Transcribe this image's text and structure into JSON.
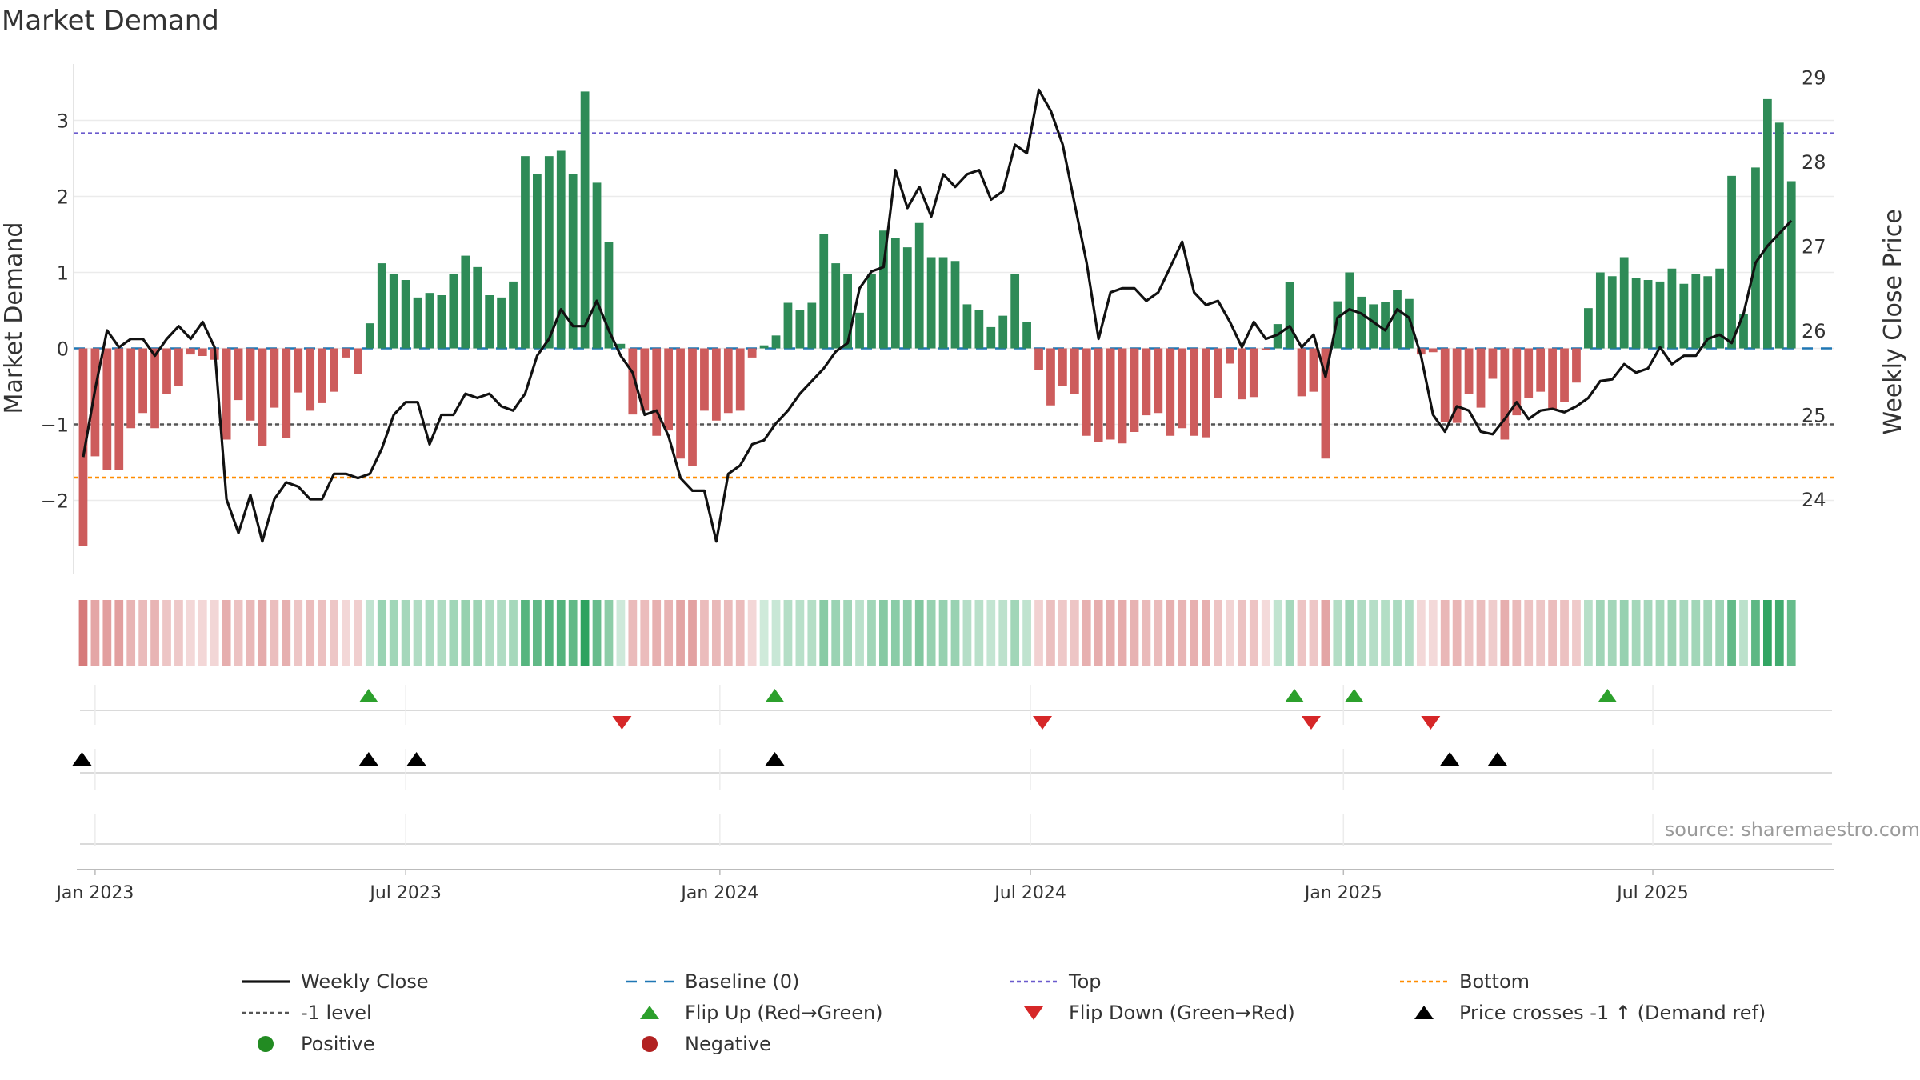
{
  "title": "Market Demand",
  "source": "source: sharemaestro.com",
  "colors": {
    "positive": "#2e8b57",
    "negative": "#cd5c5c",
    "close": "#111111",
    "baseline": "#1f77b4",
    "top": "#6a5acd",
    "bottom": "#ff8c00",
    "minus1": "#555555",
    "flip_up": "#2ca02c",
    "flip_down": "#d62728",
    "cross": "#000000",
    "positive_dot": "#228b22",
    "negative_dot": "#b22222"
  },
  "legend": [
    {
      "key": "close",
      "label": "Weekly Close",
      "symbol": "line-solid"
    },
    {
      "key": "baseline",
      "label": "Baseline (0)",
      "symbol": "line-dash"
    },
    {
      "key": "top",
      "label": "Top",
      "symbol": "line-dot"
    },
    {
      "key": "bottom",
      "label": "Bottom",
      "symbol": "line-dot"
    },
    {
      "key": "minus1",
      "label": "-1 level",
      "symbol": "line-dot"
    },
    {
      "key": "flip_up",
      "label": "Flip Up (Red→Green)",
      "symbol": "tri-up"
    },
    {
      "key": "flip_down",
      "label": "Flip Down (Green→Red)",
      "symbol": "tri-down"
    },
    {
      "key": "cross",
      "label": "Price crosses -1 ↑ (Demand ref)",
      "symbol": "tri-up"
    },
    {
      "key": "positive_dot",
      "label": "Positive",
      "symbol": "dot"
    },
    {
      "key": "negative_dot",
      "label": "Negative",
      "symbol": "dot"
    }
  ],
  "chart_data": {
    "type": "bar+line",
    "title": "Market Demand",
    "ylabel_left": "Market Demand",
    "ylabel_right": "Weekly Close Price",
    "ylim_left": [
      -2.85,
      3.75
    ],
    "ylim_right": [
      23.1,
      29.3
    ],
    "yticks_left": [
      -2,
      -1,
      0,
      1,
      2,
      3
    ],
    "yticks_right": [
      24,
      25,
      26,
      27,
      28,
      29
    ],
    "x_start_week": 0,
    "x_end_week": 147,
    "x_ticks": [
      {
        "label": "Jan 2023",
        "week": 1.5
      },
      {
        "label": "Jul 2023",
        "week": 27.5
      },
      {
        "label": "Jan 2024",
        "week": 53.8
      },
      {
        "label": "Jul 2024",
        "week": 79.8
      },
      {
        "label": "Jan 2025",
        "week": 106
      },
      {
        "label": "Jul 2025",
        "week": 131.9
      }
    ],
    "reference_lines": {
      "baseline": 0,
      "top": 2.83,
      "bottom": -1.7,
      "minus1": -1
    },
    "demand": [
      -2.6,
      -1.42,
      -1.6,
      -1.6,
      -1.05,
      -0.85,
      -1.05,
      -0.6,
      -0.5,
      -0.08,
      -0.1,
      -0.15,
      -1.2,
      -0.68,
      -0.95,
      -1.28,
      -0.78,
      -1.18,
      -0.58,
      -0.82,
      -0.72,
      -0.57,
      -0.12,
      -0.34,
      0.33,
      1.12,
      0.98,
      0.9,
      0.67,
      0.73,
      0.7,
      0.98,
      1.22,
      1.07,
      0.7,
      0.67,
      0.88,
      2.53,
      2.3,
      2.53,
      2.6,
      2.3,
      3.38,
      2.18,
      1.4,
      0.06,
      -0.87,
      -0.82,
      -1.15,
      -1.08,
      -1.45,
      -1.55,
      -0.82,
      -0.95,
      -0.85,
      -0.82,
      -0.12,
      0.04,
      0.17,
      0.6,
      0.5,
      0.6,
      1.5,
      1.12,
      0.98,
      0.47,
      0.98,
      1.55,
      1.45,
      1.33,
      1.65,
      1.2,
      1.2,
      1.15,
      0.58,
      0.5,
      0.28,
      0.43,
      0.98,
      0.35,
      -0.28,
      -0.75,
      -0.5,
      -0.6,
      -1.15,
      -1.23,
      -1.2,
      -1.25,
      -1.1,
      -0.88,
      -0.85,
      -1.15,
      -1.05,
      -1.15,
      -1.17,
      -0.65,
      -0.2,
      -0.67,
      -0.64,
      -0.02,
      0.32,
      0.87,
      -0.63,
      -0.57,
      -1.45,
      0.62,
      1.0,
      0.68,
      0.58,
      0.61,
      0.77,
      0.65,
      -0.08,
      -0.05,
      -0.97,
      -0.98,
      -0.6,
      -0.78,
      -0.4,
      -1.2,
      -0.88,
      -0.65,
      -0.57,
      -0.8,
      -0.7,
      -0.45,
      0.53,
      1.0,
      0.95,
      1.2,
      0.93,
      0.9,
      0.88,
      1.05,
      0.85,
      0.98,
      0.95,
      1.05,
      2.27,
      0.45,
      2.38,
      3.28,
      2.97,
      2.2
    ],
    "close": [
      24.5,
      25.3,
      26.0,
      25.8,
      25.9,
      25.9,
      25.7,
      25.9,
      26.05,
      25.9,
      26.1,
      25.8,
      24.0,
      23.6,
      24.05,
      23.5,
      24.0,
      24.2,
      24.15,
      24.0,
      24.0,
      24.3,
      24.3,
      24.25,
      24.3,
      24.6,
      25.0,
      25.15,
      25.15,
      24.65,
      25.0,
      25.0,
      25.25,
      25.2,
      25.25,
      25.1,
      25.05,
      25.25,
      25.7,
      25.9,
      26.25,
      26.05,
      26.05,
      26.35,
      26.0,
      25.7,
      25.5,
      25.0,
      25.05,
      24.75,
      24.25,
      24.1,
      24.1,
      23.5,
      24.3,
      24.4,
      24.65,
      24.7,
      24.9,
      25.05,
      25.25,
      25.4,
      25.55,
      25.75,
      25.85,
      26.5,
      26.7,
      26.75,
      27.9,
      27.45,
      27.7,
      27.35,
      27.85,
      27.7,
      27.85,
      27.9,
      27.55,
      27.65,
      28.2,
      28.1,
      28.85,
      28.6,
      28.2,
      27.5,
      26.8,
      25.9,
      26.45,
      26.5,
      26.5,
      26.35,
      26.45,
      26.75,
      27.05,
      26.45,
      26.3,
      26.35,
      26.1,
      25.8,
      26.1,
      25.9,
      25.95,
      26.05,
      25.8,
      25.95,
      25.45,
      26.15,
      26.25,
      26.2,
      26.1,
      26.0,
      26.25,
      26.15,
      25.7,
      25.0,
      24.8,
      25.1,
      25.05,
      24.8,
      24.77,
      24.95,
      25.15,
      24.95,
      25.05,
      25.07,
      25.03,
      25.1,
      25.2,
      25.4,
      25.42,
      25.6,
      25.5,
      25.55,
      25.8,
      25.6,
      25.7,
      25.7,
      25.9,
      25.95,
      25.85,
      26.2,
      26.8,
      27.0,
      27.15,
      27.3
    ],
    "flip_up_weeks": [
      24.4,
      58.4,
      101.9,
      106.9,
      128.1
    ],
    "flip_down_weeks": [
      45.6,
      80.8,
      103.3,
      113.3
    ],
    "price_cross_weeks": [
      0.4,
      24.4,
      28.4,
      58.4,
      114.9,
      118.9
    ]
  }
}
